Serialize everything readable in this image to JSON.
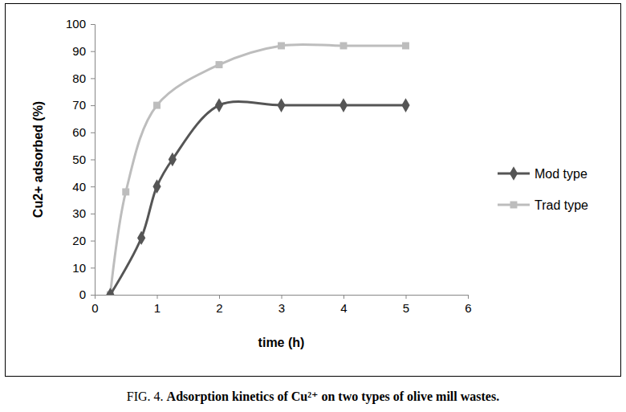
{
  "chart_data": {
    "type": "line",
    "caption_label": "FIG. 4.",
    "title": "Adsorption kinetics of Cu²⁺ on two types of olive mill wastes.",
    "x_label": "time (h)",
    "y_label": "Cu2+ adsorbed (%)",
    "xlim": [
      0,
      6
    ],
    "xticks": [
      0,
      1,
      2,
      3,
      4,
      5,
      6
    ],
    "ylim": [
      0,
      100
    ],
    "yticks": [
      0,
      10,
      20,
      30,
      40,
      50,
      60,
      70,
      80,
      90,
      100
    ],
    "grid": false,
    "legend": "right",
    "series": [
      {
        "name": "Mod type",
        "color": "#555555",
        "marker": "diamond",
        "x": [
          0.25,
          0.75,
          1,
          1.25,
          2,
          3,
          4,
          5
        ],
        "values": [
          0,
          21,
          40,
          50,
          70,
          70,
          70,
          70
        ]
      },
      {
        "name": "Trad type",
        "color": "#bdbdbd",
        "marker": "square",
        "x": [
          0.25,
          0.5,
          1,
          2,
          3,
          4,
          5
        ],
        "values": [
          0,
          38,
          70,
          85,
          92,
          92,
          92
        ]
      }
    ]
  }
}
